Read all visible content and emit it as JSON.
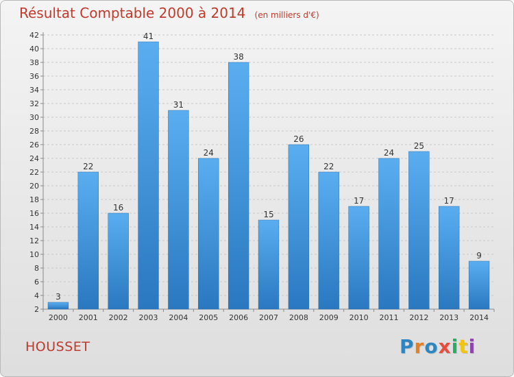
{
  "chart_data": {
    "type": "bar",
    "title": "Résultat Comptable 2000 à 2014",
    "subtitle": "(en milliers d'€)",
    "categories": [
      "2000",
      "2001",
      "2002",
      "2003",
      "2004",
      "2005",
      "2006",
      "2007",
      "2008",
      "2009",
      "2010",
      "2011",
      "2012",
      "2013",
      "2014"
    ],
    "values": [
      3,
      22,
      16,
      41,
      31,
      24,
      38,
      15,
      26,
      22,
      17,
      24,
      25,
      17,
      9
    ],
    "ylim": [
      2,
      42
    ],
    "yticks": [
      2,
      4,
      6,
      8,
      10,
      12,
      14,
      16,
      18,
      20,
      22,
      24,
      26,
      28,
      30,
      32,
      34,
      36,
      38,
      40,
      42
    ],
    "grid": true,
    "xlabel": "",
    "ylabel": "",
    "bar_color": "#3f94d6"
  },
  "commune": "HOUSSET",
  "brand": {
    "text": "Proxiti",
    "colors": [
      "#2e86c1",
      "#e67e22",
      "#2e86c1",
      "#e74c3c",
      "#27ae60",
      "#f1c40f",
      "#8e44ad"
    ]
  },
  "colors": {
    "title": "#c0392b",
    "accent": "#3f94d6"
  }
}
